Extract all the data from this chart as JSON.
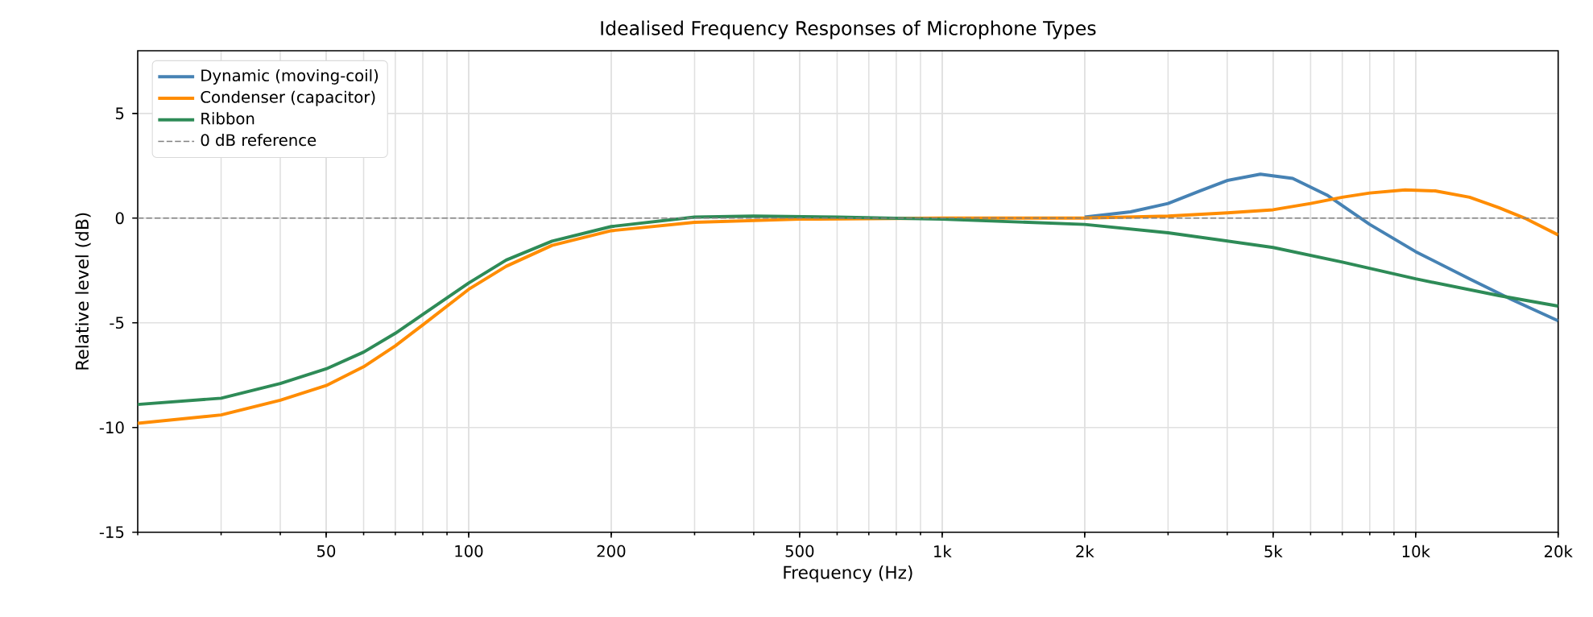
{
  "chart_data": {
    "type": "line",
    "title": "Idealised Frequency Responses of Microphone Types",
    "xlabel": "Frequency (Hz)",
    "ylabel": "Relative level (dB)",
    "log": "x",
    "xlim": [
      20,
      20000
    ],
    "ylim": [
      -15,
      8
    ],
    "xticks": [
      50,
      100,
      200,
      500,
      {
        "value": 1000,
        "label": "1k"
      },
      {
        "value": 2000,
        "label": "2k"
      },
      {
        "value": 5000,
        "label": "5k"
      },
      {
        "value": 10000,
        "label": "10k"
      },
      {
        "value": 20000,
        "label": "20k"
      }
    ],
    "yticks": [
      -15,
      -10,
      -5,
      0,
      5
    ],
    "grid": true,
    "legend": "top left",
    "line_style": "solid",
    "marker": "none",
    "series": [
      {
        "name": "Dynamic (moving-coil)",
        "color": "#4682b4",
        "x": [
          2000,
          2500,
          3000,
          3500,
          4000,
          4700,
          5500,
          6500,
          8000,
          10000,
          13000,
          16000,
          20000
        ],
        "values": [
          0.05,
          0.3,
          0.7,
          1.3,
          1.8,
          2.1,
          1.9,
          1.1,
          -0.3,
          -1.6,
          -2.9,
          -3.9,
          -4.9
        ]
      },
      {
        "name": "Condenser (capacitor)",
        "color": "#ff8c00",
        "x": [
          20,
          30,
          40,
          50,
          60,
          70,
          80,
          100,
          120,
          150,
          200,
          300,
          500,
          1000,
          2000,
          3000,
          4000,
          5000,
          6000,
          7000,
          8000,
          9500,
          11000,
          13000,
          15000,
          17000,
          20000
        ],
        "values": [
          -9.8,
          -9.4,
          -8.7,
          -8.0,
          -7.1,
          -6.1,
          -5.1,
          -3.4,
          -2.3,
          -1.3,
          -0.6,
          -0.2,
          -0.05,
          0,
          0,
          0.1,
          0.25,
          0.4,
          0.7,
          1.0,
          1.2,
          1.35,
          1.3,
          1.0,
          0.5,
          0.0,
          -0.8
        ]
      },
      {
        "name": "Ribbon",
        "color": "#2e8b57",
        "x": [
          20,
          30,
          40,
          50,
          60,
          70,
          80,
          100,
          120,
          150,
          200,
          300,
          400,
          600,
          1000,
          2000,
          3000,
          5000,
          7000,
          10000,
          15000,
          20000
        ],
        "values": [
          -8.9,
          -8.6,
          -7.9,
          -7.2,
          -6.4,
          -5.5,
          -4.6,
          -3.1,
          -2.0,
          -1.1,
          -0.4,
          0.05,
          0.1,
          0.05,
          -0.05,
          -0.3,
          -0.7,
          -1.4,
          -2.1,
          -2.9,
          -3.7,
          -4.2
        ]
      }
    ],
    "ref_lines": [
      {
        "axis": "y",
        "value": 0,
        "label": "0 dB reference",
        "color": "#808080",
        "line_style": "dashed"
      }
    ]
  }
}
